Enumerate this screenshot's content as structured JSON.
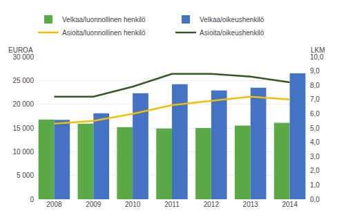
{
  "chart_data": {
    "type": "bar",
    "categories": [
      "2008",
      "2009",
      "2010",
      "2011",
      "2012",
      "2013",
      "2014"
    ],
    "series": [
      {
        "name": "Velkaa/luonnollinen henkilö",
        "type": "bar",
        "color": "#5aaa46",
        "values": [
          16800,
          15900,
          15200,
          14900,
          15000,
          15500,
          16100
        ]
      },
      {
        "name": "Velkaa/oikeushenkilö",
        "type": "bar",
        "color": "#4472c4",
        "values": [
          16700,
          18100,
          22300,
          24200,
          22900,
          23500,
          26500
        ]
      },
      {
        "name": "Asioita/luonnollinen henkilö",
        "type": "line",
        "axis": "y2",
        "color": "#f0c000",
        "values": [
          5.3,
          5.5,
          6.0,
          6.6,
          6.9,
          7.2,
          7.0
        ]
      },
      {
        "name": "Asioita/oikeushenkilö",
        "type": "line",
        "axis": "y2",
        "color": "#375623",
        "values": [
          7.2,
          7.2,
          7.9,
          8.8,
          8.8,
          8.6,
          8.2
        ]
      }
    ],
    "ylabel": "EUROA",
    "y2label": "LKM",
    "ylim": [
      0,
      30000
    ],
    "yticks": [
      0,
      {
        "value": 5000,
        "label": "5 000"
      },
      {
        "value": 10000,
        "label": "10 000"
      },
      {
        "value": 15000,
        "label": "15 000"
      },
      {
        "value": 20000,
        "label": "20 000"
      },
      {
        "value": 25000,
        "label": "25 000"
      },
      {
        "value": 30000,
        "label": "30 000"
      }
    ],
    "y2lim": [
      0.0,
      10.0
    ],
    "y2ticks": [
      {
        "value": 0.0,
        "label": "0,0"
      },
      {
        "value": 1.0,
        "label": "1,0"
      },
      {
        "value": 2.0,
        "label": "2,0"
      },
      {
        "value": 3.0,
        "label": "3,0"
      },
      {
        "value": 4.0,
        "label": "4,0"
      },
      {
        "value": 5.0,
        "label": "5,0"
      },
      {
        "value": 6.0,
        "label": "6,0"
      },
      {
        "value": 7.0,
        "label": "7,0"
      },
      {
        "value": 8.0,
        "label": "8,0"
      },
      {
        "value": 9.0,
        "label": "9,0"
      },
      {
        "value": 10.0,
        "label": "10,0"
      }
    ],
    "grid": true
  }
}
